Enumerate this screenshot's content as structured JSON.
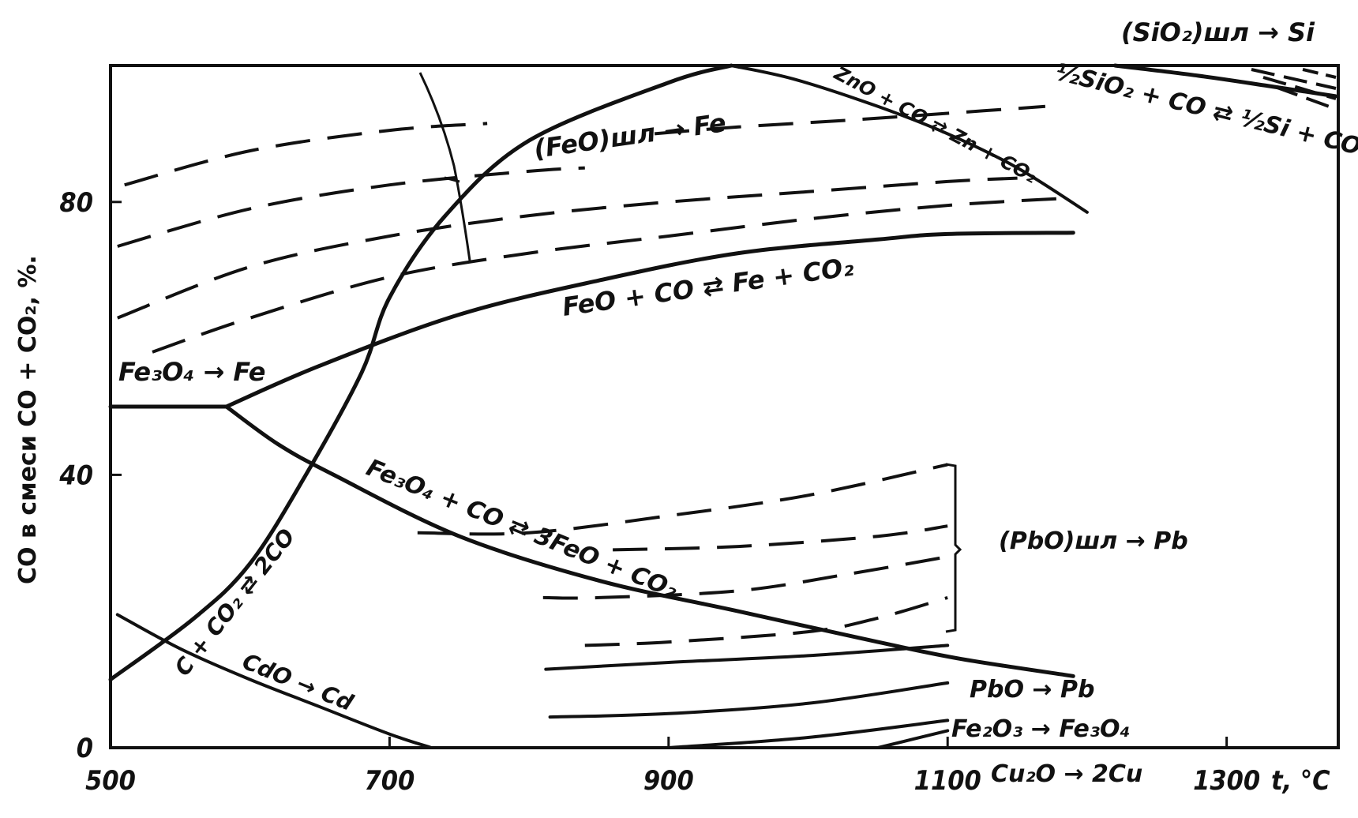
{
  "chart_data": {
    "type": "line",
    "title": "",
    "xlabel": "t, °C",
    "ylabel": "CO в смеси CO + CO₂, %.",
    "xlim": [
      500,
      1380
    ],
    "ylim": [
      0,
      100
    ],
    "x_ticks": [
      "500",
      "700",
      "900",
      "1100",
      "1300"
    ],
    "y_ticks": [
      "0",
      "40",
      "80"
    ],
    "grid": false,
    "series": [
      {
        "name": "Fe₃O₄ → Fe",
        "style": "solid",
        "x": [
          500,
          583
        ],
        "y": [
          50,
          50
        ]
      },
      {
        "name": "FeO + CO ⇄ Fe + CO₂",
        "style": "solid",
        "x": [
          583,
          650,
          750,
          850,
          950,
          1050,
          1100,
          1190
        ],
        "y": [
          50,
          56,
          63.5,
          68.5,
          72.5,
          74.5,
          75.3,
          75.5
        ]
      },
      {
        "name": "Fe₃O₄ + CO ⇄ 3FeO + CO₂",
        "style": "solid",
        "x": [
          583,
          620,
          660,
          750,
          850,
          950,
          1050,
          1110,
          1190
        ],
        "y": [
          50,
          44.5,
          40,
          31,
          24.5,
          20,
          15.5,
          13,
          10.5
        ]
      },
      {
        "name": "C + CO₂ ⇄ 2CO",
        "style": "solid",
        "x": [
          500,
          560,
          600,
          640,
          680,
          700,
          740,
          800,
          900,
          945
        ],
        "y": [
          10,
          19,
          27,
          40,
          55,
          66,
          78,
          89,
          97.5,
          100
        ]
      },
      {
        "name": "ZnO + CO ⇄ Zn + CO₂",
        "style": "solid",
        "x": [
          945,
          990,
          1050,
          1100,
          1150,
          1200
        ],
        "y": [
          100,
          98,
          94,
          90,
          85,
          78.5
        ]
      },
      {
        "name": "½SiO₂ + CO ⇄ ½Si + CO₂",
        "style": "solid",
        "x": [
          1220,
          1280,
          1330,
          1378
        ],
        "y": [
          100,
          98.5,
          97,
          95.5
        ]
      },
      {
        "name": "CdO → Cd",
        "style": "solid",
        "x": [
          505,
          550,
          600,
          650,
          700,
          730
        ],
        "y": [
          19.5,
          14.5,
          10,
          6,
          2,
          0
        ]
      },
      {
        "name": "(FeO)шл → Fe",
        "style": "dashed",
        "x": [
          510,
          600,
          700,
          770
        ],
        "y": [
          82.5,
          87.5,
          90.5,
          91.5
        ]
      },
      {
        "name": "(FeO)шл → Fe",
        "style": "dashed",
        "x": [
          505,
          600,
          700,
          800,
          840
        ],
        "y": [
          73.5,
          79,
          82.5,
          84.5,
          85
        ]
      },
      {
        "name": "(FeO)шл → Fe",
        "style": "dashed",
        "x": [
          505,
          600,
          700,
          800,
          900,
          1000,
          1100,
          1150
        ],
        "y": [
          63,
          70.5,
          75,
          78,
          80,
          81.5,
          83,
          83.5
        ]
      },
      {
        "name": "(FeO)шл → Fe",
        "style": "dashed",
        "x": [
          530,
          600,
          700,
          800,
          900,
          1000,
          1100,
          1180
        ],
        "y": [
          58,
          63,
          69,
          72.5,
          75,
          77.5,
          79.5,
          80.5
        ]
      },
      {
        "name": "(FeO)шл → Fe",
        "style": "dashed",
        "x": [
          890,
          950,
          1030,
          1100,
          1170
        ],
        "y": [
          90,
          91,
          92,
          93,
          94
        ]
      },
      {
        "name": "(PbO)шл → Pb",
        "style": "dashed",
        "x": [
          720,
          800,
          900,
          1000,
          1100
        ],
        "y": [
          31.5,
          31.5,
          34,
          37,
          41.5
        ]
      },
      {
        "name": "(PbO)шл → Pb",
        "style": "dashed",
        "x": [
          860,
          950,
          1050,
          1100
        ],
        "y": [
          29,
          29.5,
          31,
          32.5
        ]
      },
      {
        "name": "(PbO)шл → Pb",
        "style": "dashed",
        "x": [
          810,
          850,
          950,
          1030,
          1100
        ],
        "y": [
          22,
          22,
          23,
          25.5,
          28
        ]
      },
      {
        "name": "(PbO)шл → Pb",
        "style": "dashed",
        "x": [
          840,
          900,
          1000,
          1050,
          1100
        ],
        "y": [
          15,
          15.5,
          17,
          19,
          22
        ]
      },
      {
        "name": "PbO → Pb",
        "style": "solid",
        "x": [
          812,
          900,
          1000,
          1100
        ],
        "y": [
          11.5,
          12.5,
          13.5,
          15
        ]
      },
      {
        "name": "PbO → Pb",
        "style": "solid",
        "x": [
          815,
          900,
          1000,
          1100
        ],
        "y": [
          4.5,
          5,
          6.5,
          9.5
        ]
      },
      {
        "name": "Fe₂O₃ → Fe₃O₄",
        "style": "solid",
        "x": [
          900,
          1000,
          1100
        ],
        "y": [
          0,
          1.5,
          4
        ]
      },
      {
        "name": "Cu₂O → 2Cu",
        "style": "solid",
        "x": [
          1050,
          1100
        ],
        "y": [
          0,
          2.5
        ]
      }
    ],
    "annotations": [
      "(SiO₂)шл → Si",
      "½SiO₂ + CO ⇄ ½Si + CO₂",
      "ZnO + CO ⇄ Zn + CO₂",
      "(FeO)шл → Fe",
      "FeO + CO ⇄ Fe + CO₂",
      "Fe₃O₄ → Fe",
      "Fe₃O₄ + CO ⇄ 3FeO + CO₂",
      "(PbO)шл → Pb",
      "C + CO₂ ⇄ 2CO",
      "CdO → Cd",
      "PbO → Pb",
      "Fe₂O₃ → Fe₃O₄",
      "Cu₂O → 2Cu"
    ]
  }
}
